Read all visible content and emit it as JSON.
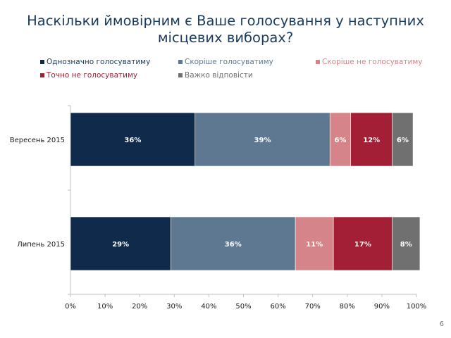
{
  "page": {
    "title": "Наскільки ймовірним є Ваше голосування у наступних місцевих виборах?",
    "page_number": "6"
  },
  "chart_data": {
    "type": "bar",
    "orientation": "horizontal",
    "stacked": true,
    "title": "Наскільки ймовірним є Ваше голосування у наступних місцевих виборах?",
    "categories": [
      "Вересень 2015",
      "Липень 2015"
    ],
    "series": [
      {
        "name": "Однозначно голосуватиму",
        "color": "#0f2a4a",
        "label_color": "#ffffff",
        "values": [
          36,
          29
        ],
        "labels": [
          "36%",
          "29%"
        ]
      },
      {
        "name": "Скоріше голосуватиму",
        "color": "#5f7891",
        "label_color": "#ffffff",
        "values": [
          39,
          36
        ],
        "labels": [
          "39%",
          "36%"
        ]
      },
      {
        "name": "Скоріше не голосуватиму",
        "color": "#d58489",
        "label_color": "#ffffff",
        "values": [
          6,
          11
        ],
        "labels": [
          "6%",
          "11%"
        ]
      },
      {
        "name": "Точно не голосуватиму",
        "color": "#a31f35",
        "label_color": "#ffffff",
        "values": [
          12,
          17
        ],
        "labels": [
          "12%",
          "17%"
        ]
      },
      {
        "name": "Важко відповісти",
        "color": "#707070",
        "label_color": "#ffffff",
        "values": [
          6,
          8
        ],
        "labels": [
          "6%",
          "8%"
        ]
      }
    ],
    "xlim": [
      0,
      100
    ],
    "xticks": [
      "0%",
      "10%",
      "20%",
      "30%",
      "40%",
      "50%",
      "60%",
      "70%",
      "80%",
      "90%",
      "100%"
    ],
    "xlabel": "",
    "ylabel": "",
    "legend_position": "top",
    "legend_text_colors": [
      "#1a3a5c",
      "#5f7891",
      "#d58489",
      "#a31f35",
      "#707070"
    ],
    "grid": false
  }
}
